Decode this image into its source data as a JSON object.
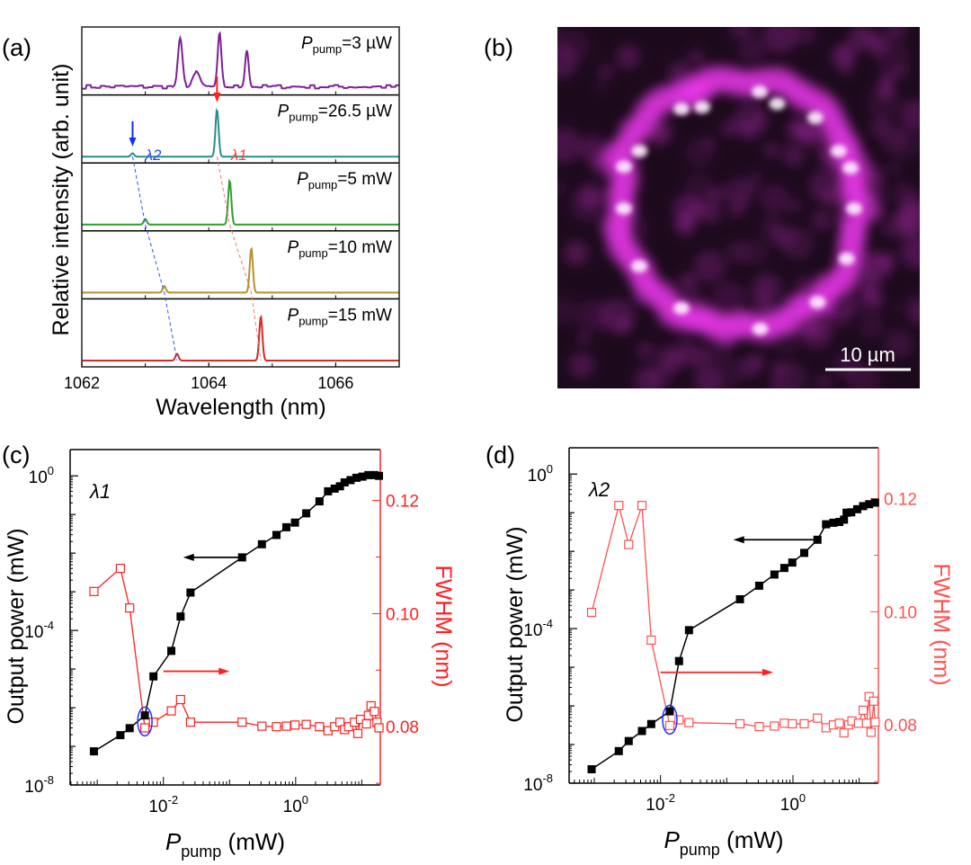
{
  "panel_labels": {
    "a": "(a)",
    "b": "(b)",
    "c": "(c)",
    "d": "(d)"
  },
  "chart_data": [
    {
      "panel": "a",
      "type": "line",
      "xlabel": "Wavelength (nm)",
      "ylabel": "Relative intensity (arb. unit)",
      "xlim": [
        1062,
        1067
      ],
      "x_ticks": [
        "1062",
        "1064",
        "1066"
      ],
      "x_tick_values": [
        1062,
        1064,
        1066
      ],
      "series": [
        {
          "label_p": "P",
          "label_sub": "pump",
          "label_val": "=3 µW",
          "color": "#7d1f96",
          "noisy": true,
          "peaks": [
            [
              1063.55,
              0.85,
              0.05
            ],
            [
              1063.8,
              0.25,
              0.08
            ],
            [
              1064.17,
              0.95,
              0.04
            ],
            [
              1064.6,
              0.68,
              0.04
            ]
          ]
        },
        {
          "label_p": "P",
          "label_sub": "pump",
          "label_val": "=26.5 µW",
          "color": "#2a8c8c",
          "noisy": false,
          "peaks": [
            [
              1062.8,
              0.06,
              0.035
            ],
            [
              1064.13,
              0.85,
              0.035
            ]
          ]
        },
        {
          "label_p": "P",
          "label_sub": "pump",
          "label_val": "=5 mW",
          "color": "#2e9e2e",
          "noisy": false,
          "peaks": [
            [
              1063.0,
              0.1,
              0.035
            ],
            [
              1064.33,
              0.8,
              0.035
            ]
          ]
        },
        {
          "label_p": "P",
          "label_sub": "pump",
          "label_val": "=10 mW",
          "color": "#b8902c",
          "noisy": false,
          "peaks": [
            [
              1063.3,
              0.12,
              0.035
            ],
            [
              1064.67,
              0.8,
              0.035
            ]
          ]
        },
        {
          "label_p": "P",
          "label_sub": "pump",
          "label_val": "=15 mW",
          "color": "#d42a2a",
          "noisy": false,
          "peaks": [
            [
              1063.5,
              0.12,
              0.035
            ],
            [
              1064.82,
              0.8,
              0.035
            ]
          ]
        }
      ],
      "annotations": {
        "lambda1": "λ1",
        "lambda2": "λ2",
        "lambda1_color": "#ff4040",
        "lambda2_color": "#2a4cff"
      }
    },
    {
      "panel": "b",
      "type": "image",
      "scale_bar": "10 µm",
      "color": "#ff3cff"
    },
    {
      "panel": "c",
      "type": "scatter",
      "label": "λ1",
      "xlabel_p": "P",
      "xlabel_sub": "pump",
      "xlabel_unit": " (mW)",
      "ylabel_left": "Output power (mW)",
      "ylabel_right": "FWHM (nm)",
      "x_scale": "log",
      "y_left_scale": "log",
      "xlim_log10": [
        -3.41,
        1.28
      ],
      "ylim_left_log10": [
        -8,
        0.68
      ],
      "ylim_right": [
        0.0697,
        0.129
      ],
      "x_ticks": [
        {
          "base": "10",
          "exp": "-2",
          "v": -2
        },
        {
          "base": "10",
          "exp": "0",
          "v": 0
        }
      ],
      "y_left_ticks": [
        {
          "base": "10",
          "exp": "0",
          "v": 0
        },
        {
          "base": "10",
          "exp": "-4",
          "v": -4
        },
        {
          "base": "10",
          "exp": "-8",
          "v": -8
        }
      ],
      "y_right_ticks": [
        "0.08",
        "0.10",
        "0.12"
      ],
      "y_right_tick_values": [
        0.08,
        0.1,
        0.12
      ],
      "right_color": "#ff2020",
      "output_power_log10": {
        "x": [
          -3.05,
          -2.65,
          -2.51,
          -2.28,
          -2.15,
          -1.88,
          -1.74,
          -1.59,
          -0.81,
          -0.51,
          -0.29,
          -0.14,
          -0.01,
          0.16,
          0.36,
          0.49,
          0.59,
          0.67,
          0.74,
          0.83,
          0.92,
          1.01,
          1.1,
          1.19,
          1.26
        ],
        "y": [
          -7.13,
          -6.71,
          -6.53,
          -6.2,
          -5.19,
          -4.53,
          -3.64,
          -3.02,
          -2.11,
          -1.77,
          -1.53,
          -1.33,
          -1.21,
          -0.97,
          -0.66,
          -0.4,
          -0.33,
          -0.27,
          -0.17,
          -0.11,
          -0.05,
          -0.02,
          0.02,
          0.02,
          0.0
        ]
      },
      "fwhm": {
        "x_log10": [
          -3.05,
          -2.65,
          -2.51,
          -2.28,
          -2.15,
          -1.88,
          -1.74,
          -1.59,
          -0.81,
          -0.51,
          -0.29,
          -0.14,
          -0.01,
          0.16,
          0.36,
          0.49,
          0.59,
          0.67,
          0.74,
          0.8,
          0.89,
          0.94,
          0.98,
          1.07,
          1.1,
          1.14,
          1.19,
          1.23,
          1.26
        ],
        "y": [
          0.1039,
          0.108,
          0.101,
          0.0798,
          0.0808,
          0.0828,
          0.0848,
          0.0808,
          0.0808,
          0.0801,
          0.08,
          0.0801,
          0.0803,
          0.0804,
          0.08,
          0.0793,
          0.08,
          0.0808,
          0.0795,
          0.08,
          0.0808,
          0.0788,
          0.0813,
          0.0805,
          0.082,
          0.0837,
          0.0827,
          0.0808,
          0.0798
        ]
      },
      "arrows": {
        "left_arrow_y_log10": -2.11,
        "left_from": -0.81,
        "left_to": -1.7,
        "right_arrow_fwhm": 0.0898,
        "right_from": -2.0,
        "right_to": -1.0
      },
      "highlight_x_log10": -2.28
    },
    {
      "panel": "d",
      "type": "scatter",
      "label": "λ2",
      "xlabel_p": "P",
      "xlabel_sub": "pump",
      "xlabel_unit": " (mW)",
      "ylabel_left": "Output power (mW)",
      "ylabel_right": "FWHM (nm)",
      "x_scale": "log",
      "y_left_scale": "log",
      "xlim_log10": [
        -3.38,
        1.29
      ],
      "ylim_left_log10": [
        -8,
        0.68
      ],
      "ylim_right": [
        0.0697,
        0.129
      ],
      "x_ticks": [
        {
          "base": "10",
          "exp": "-2",
          "v": -2
        },
        {
          "base": "10",
          "exp": "0",
          "v": 0
        }
      ],
      "y_left_ticks": [
        {
          "base": "10",
          "exp": "0",
          "v": 0
        },
        {
          "base": "10",
          "exp": "-4",
          "v": -4
        },
        {
          "base": "10",
          "exp": "-8",
          "v": -8
        }
      ],
      "y_right_ticks": [
        "0.08",
        "0.10",
        "0.12"
      ],
      "y_right_tick_values": [
        0.08,
        0.1,
        0.12
      ],
      "right_color": "#ff5050",
      "output_power_log10": {
        "x": [
          -3.04,
          -2.63,
          -2.48,
          -2.28,
          -2.14,
          -1.86,
          -1.72,
          -1.57,
          -0.8,
          -0.51,
          -0.28,
          -0.13,
          -0.01,
          0.17,
          0.37,
          0.5,
          0.61,
          0.7,
          0.77,
          0.81,
          0.88,
          0.97,
          1.06,
          1.15,
          1.24
        ],
        "y": [
          -7.64,
          -7.17,
          -6.91,
          -6.65,
          -6.47,
          -6.14,
          -4.84,
          -4.04,
          -3.24,
          -2.89,
          -2.6,
          -2.43,
          -2.29,
          -2.04,
          -1.7,
          -1.3,
          -1.26,
          -1.24,
          -1.18,
          -1.0,
          -0.99,
          -0.91,
          -0.83,
          -0.78,
          -0.74
        ]
      },
      "fwhm": {
        "x_log10": [
          -3.04,
          -2.63,
          -2.48,
          -2.28,
          -2.14,
          -1.86,
          -1.72,
          -1.57,
          -0.8,
          -0.51,
          -0.28,
          -0.13,
          -0.01,
          0.17,
          0.37,
          0.5,
          0.61,
          0.7,
          0.77,
          0.84,
          0.89,
          0.99,
          1.06,
          1.11,
          1.15,
          1.18,
          1.22,
          1.24
        ],
        "y": [
          0.0999,
          0.1188,
          0.1119,
          0.1188,
          0.095,
          0.0799,
          0.0809,
          0.0804,
          0.0802,
          0.0797,
          0.0798,
          0.0803,
          0.0802,
          0.0802,
          0.0812,
          0.0795,
          0.08,
          0.0803,
          0.0786,
          0.08,
          0.0807,
          0.0803,
          0.0826,
          0.0803,
          0.085,
          0.0787,
          0.0842,
          0.0805
        ]
      },
      "arrows": {
        "left_arrow_y_log10": -1.7,
        "left_from": 0.37,
        "left_to": -0.9,
        "right_arrow_fwhm": 0.0893,
        "right_from": -2.0,
        "right_to": -0.3
      },
      "highlight_x_log10": -1.86
    }
  ]
}
